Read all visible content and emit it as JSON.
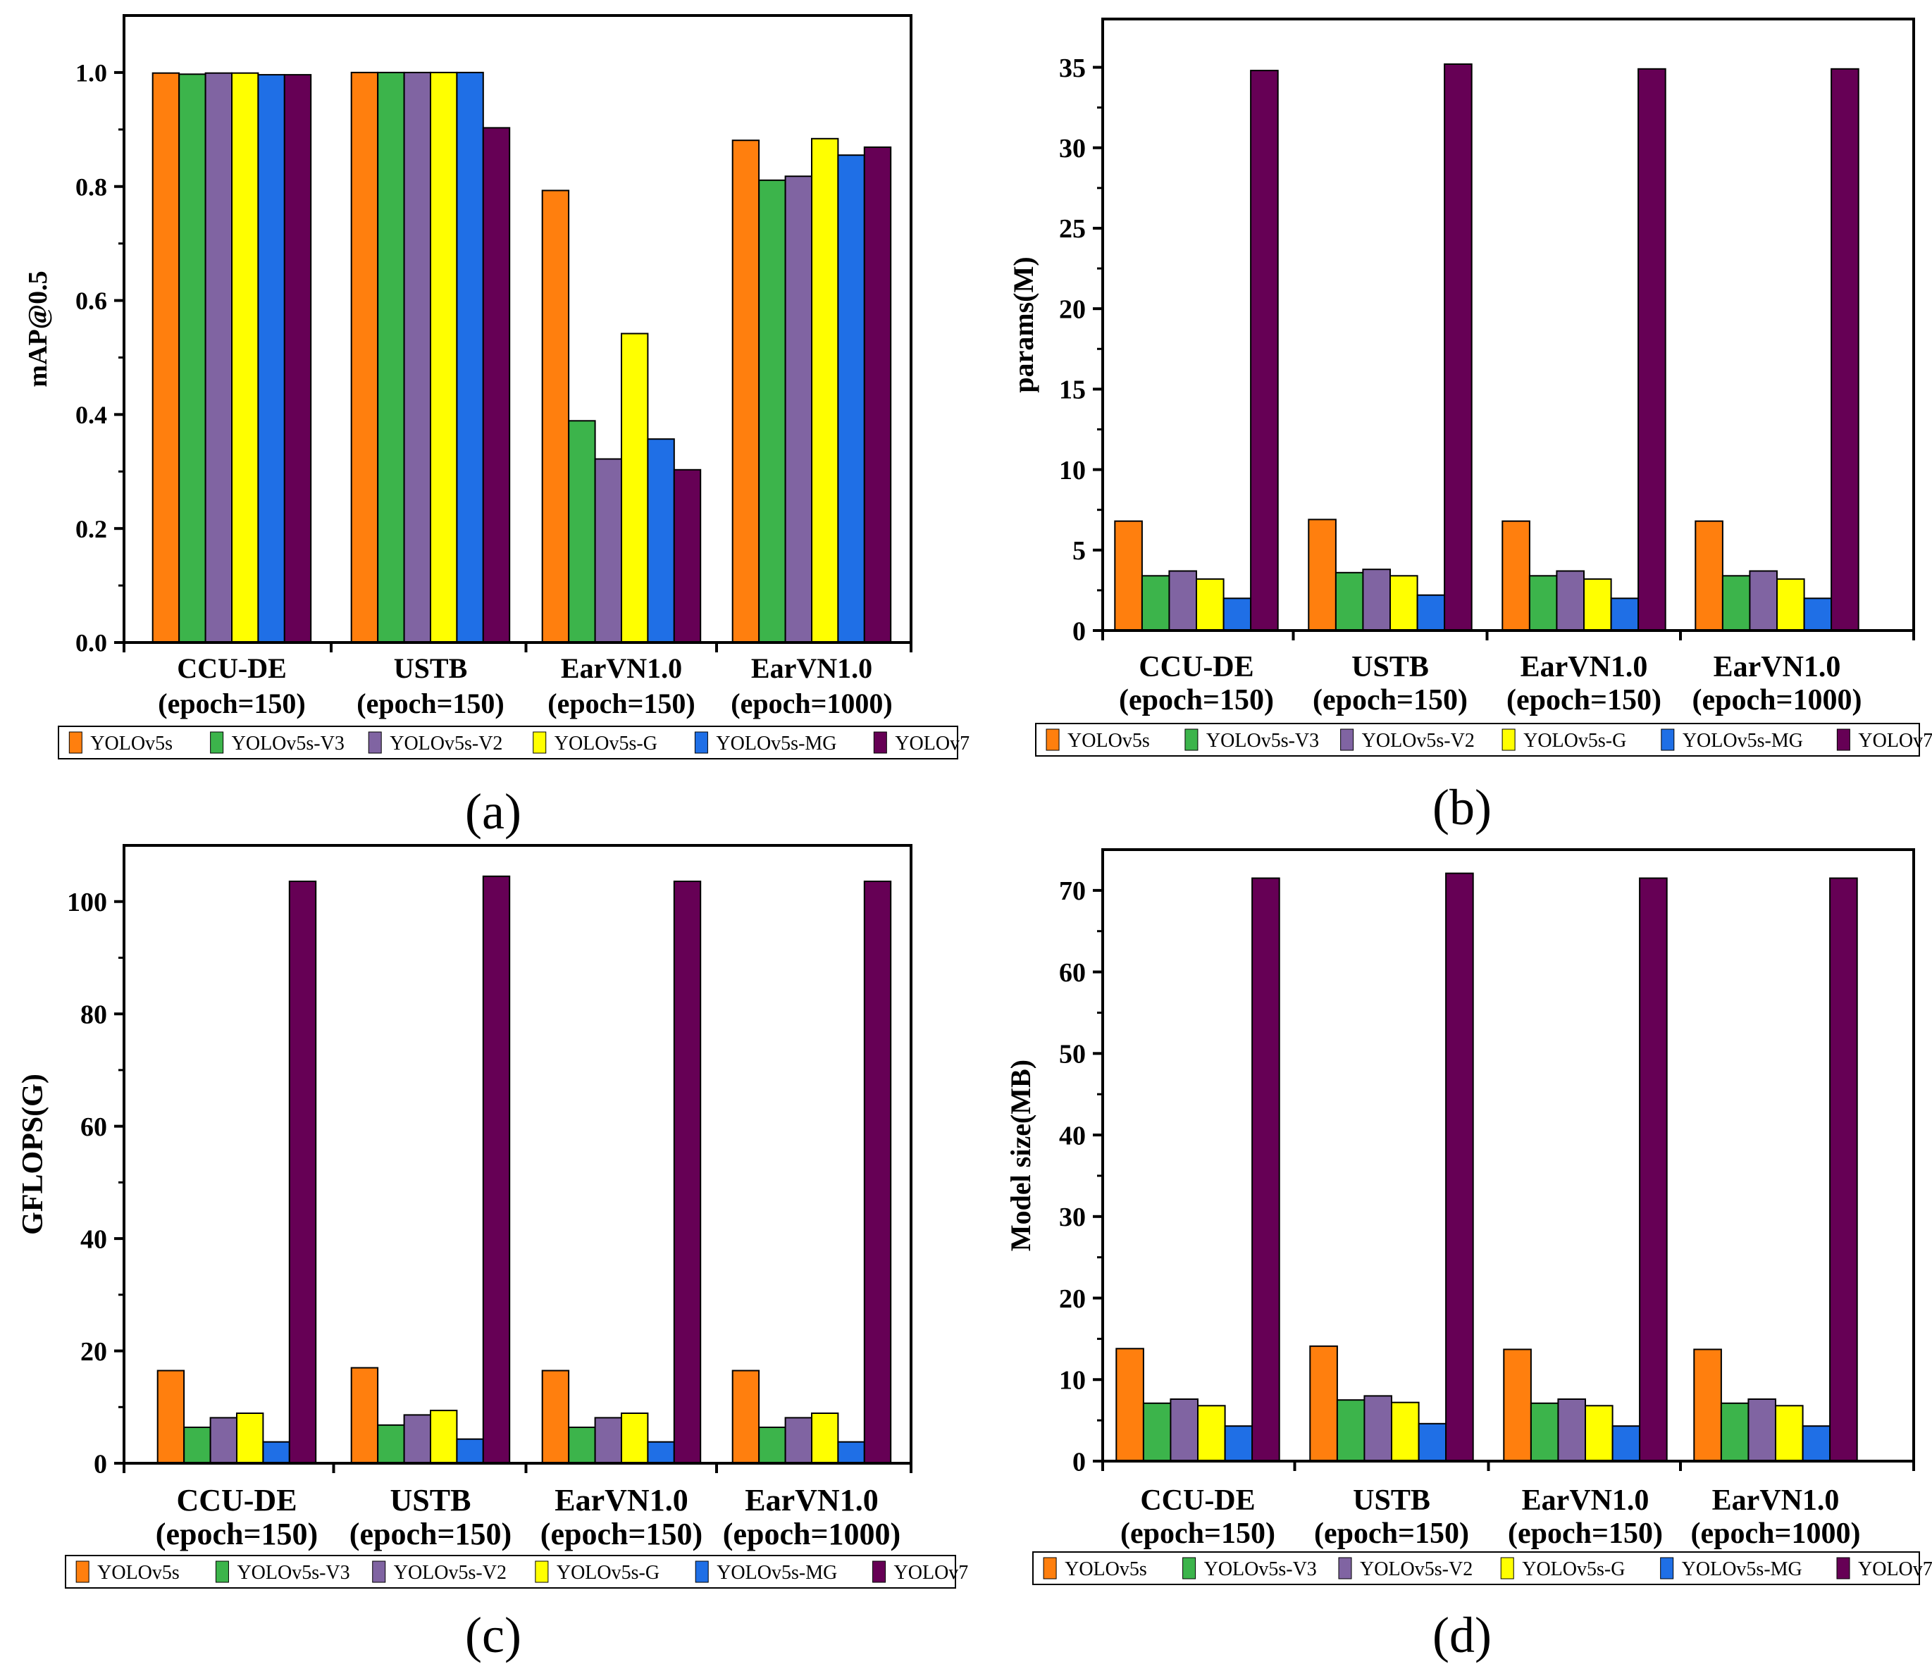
{
  "colors": {
    "YOLOv5s": "#ff7f0e",
    "YOLOv5s-V3": "#3cb44b",
    "YOLOv5s-V2": "#8064a2",
    "YOLOv5s-G": "#ffff00",
    "YOLOv5s-MG": "#1f6fe6",
    "YOLOv7": "#660055",
    "axis": "#000000",
    "background": "#ffffff"
  },
  "legend": [
    "YOLOv5s",
    "YOLOv5s-V3",
    "YOLOv5s-V2",
    "YOLOv5s-G",
    "YOLOv5s-MG",
    "YOLOv7"
  ],
  "chart_data": [
    {
      "id": "a",
      "panel_label": "(a)",
      "type": "bar",
      "title": "",
      "ylabel": "mAP@0.5",
      "xlabel": "",
      "ylim": [
        0,
        1.1
      ],
      "yticks": [
        0.0,
        0.2,
        0.4,
        0.6,
        0.8,
        1.0
      ],
      "ytick_labels": [
        "0.0",
        "0.2",
        "0.4",
        "0.6",
        "0.8",
        "1.0"
      ],
      "categories": [
        [
          "CCU-DE",
          "(epoch=150)"
        ],
        [
          "USTB",
          "(epoch=150)"
        ],
        [
          "EarVN1.0",
          "(epoch=150)"
        ],
        [
          "EarVN1.0",
          "(epoch=1000)"
        ]
      ],
      "series": [
        {
          "name": "YOLOv5s",
          "values": [
            0.999,
            1.0,
            0.793,
            0.881
          ]
        },
        {
          "name": "YOLOv5s-V3",
          "values": [
            0.997,
            1.0,
            0.389,
            0.811
          ]
        },
        {
          "name": "YOLOv5s-V2",
          "values": [
            0.999,
            1.0,
            0.322,
            0.818
          ]
        },
        {
          "name": "YOLOv5s-G",
          "values": [
            0.999,
            1.0,
            0.542,
            0.884
          ]
        },
        {
          "name": "YOLOv5s-MG",
          "values": [
            0.996,
            1.0,
            0.357,
            0.855
          ]
        },
        {
          "name": "YOLOv7",
          "values": [
            0.996,
            0.903,
            0.303,
            0.869
          ]
        }
      ]
    },
    {
      "id": "b",
      "panel_label": "(b)",
      "type": "bar",
      "title": "",
      "ylabel": "params(M)",
      "xlabel": "",
      "ylim": [
        0,
        38
      ],
      "yticks": [
        0,
        5,
        10,
        15,
        20,
        25,
        30,
        35
      ],
      "ytick_labels": [
        "0",
        "5",
        "10",
        "15",
        "20",
        "25",
        "30",
        "35"
      ],
      "categories": [
        [
          "CCU-DE",
          "(epoch=150)"
        ],
        [
          "USTB",
          "(epoch=150)"
        ],
        [
          "EarVN1.0",
          "(epoch=150)"
        ],
        [
          "EarVN1.0",
          "(epoch=1000)"
        ]
      ],
      "series": [
        {
          "name": "YOLOv5s",
          "values": [
            6.8,
            6.9,
            6.8,
            6.8
          ]
        },
        {
          "name": "YOLOv5s-V3",
          "values": [
            3.4,
            3.6,
            3.4,
            3.4
          ]
        },
        {
          "name": "YOLOv5s-V2",
          "values": [
            3.7,
            3.8,
            3.7,
            3.7
          ]
        },
        {
          "name": "YOLOv5s-G",
          "values": [
            3.2,
            3.4,
            3.2,
            3.2
          ]
        },
        {
          "name": "YOLOv5s-MG",
          "values": [
            2.0,
            2.2,
            2.0,
            2.0
          ]
        },
        {
          "name": "YOLOv7",
          "values": [
            34.8,
            35.2,
            34.9,
            34.9
          ]
        }
      ]
    },
    {
      "id": "c",
      "panel_label": "(c)",
      "type": "bar",
      "title": "",
      "ylabel": "GFLOPS(G)",
      "xlabel": "",
      "ylim": [
        0,
        110
      ],
      "yticks": [
        0,
        20,
        40,
        60,
        80,
        100
      ],
      "ytick_labels": [
        "0",
        "20",
        "40",
        "60",
        "80",
        "100"
      ],
      "categories": [
        [
          "CCU-DE",
          "(epoch=150)"
        ],
        [
          "USTB",
          "(epoch=150)"
        ],
        [
          "EarVN1.0",
          "(epoch=150)"
        ],
        [
          "EarVN1.0",
          "(epoch=1000)"
        ]
      ],
      "series": [
        {
          "name": "YOLOv5s",
          "values": [
            16.5,
            17.0,
            16.5,
            16.5
          ]
        },
        {
          "name": "YOLOv5s-V3",
          "values": [
            6.4,
            6.8,
            6.4,
            6.4
          ]
        },
        {
          "name": "YOLOv5s-V2",
          "values": [
            8.1,
            8.6,
            8.1,
            8.1
          ]
        },
        {
          "name": "YOLOv5s-G",
          "values": [
            8.9,
            9.4,
            8.9,
            8.9
          ]
        },
        {
          "name": "YOLOv5s-MG",
          "values": [
            3.8,
            4.3,
            3.8,
            3.8
          ]
        },
        {
          "name": "YOLOv7",
          "values": [
            103.6,
            104.5,
            103.6,
            103.6
          ]
        }
      ]
    },
    {
      "id": "d",
      "panel_label": "(d)",
      "type": "bar",
      "title": "",
      "ylabel": "Model size(MB)",
      "xlabel": "",
      "ylim": [
        0,
        75
      ],
      "yticks": [
        0,
        10,
        20,
        30,
        40,
        50,
        60,
        70
      ],
      "ytick_labels": [
        "0",
        "10",
        "20",
        "30",
        "40",
        "50",
        "60",
        "70"
      ],
      "categories": [
        [
          "CCU-DE",
          "(epoch=150)"
        ],
        [
          "USTB",
          "(epoch=150)"
        ],
        [
          "EarVN1.0",
          "(epoch=150)"
        ],
        [
          "EarVN1.0",
          "(epoch=1000)"
        ]
      ],
      "series": [
        {
          "name": "YOLOv5s",
          "values": [
            13.8,
            14.1,
            13.7,
            13.7
          ]
        },
        {
          "name": "YOLOv5s-V3",
          "values": [
            7.1,
            7.5,
            7.1,
            7.1
          ]
        },
        {
          "name": "YOLOv5s-V2",
          "values": [
            7.6,
            8.0,
            7.6,
            7.6
          ]
        },
        {
          "name": "YOLOv5s-G",
          "values": [
            6.8,
            7.2,
            6.8,
            6.8
          ]
        },
        {
          "name": "YOLOv5s-MG",
          "values": [
            4.3,
            4.6,
            4.3,
            4.3
          ]
        },
        {
          "name": "YOLOv7",
          "values": [
            71.5,
            72.1,
            71.5,
            71.5
          ]
        }
      ]
    }
  ]
}
